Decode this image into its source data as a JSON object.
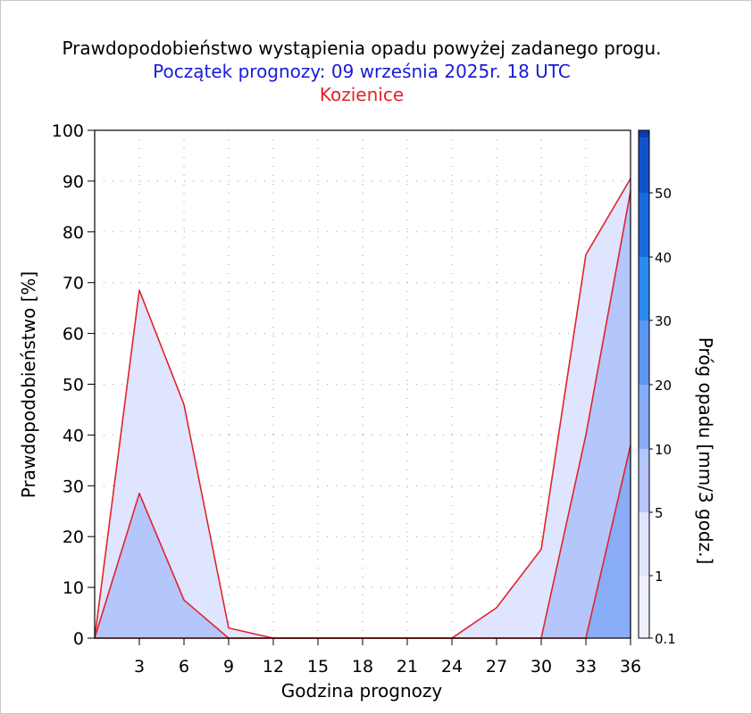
{
  "chart_data": {
    "type": "area",
    "title": "Prawdopodobieństwo wystąpienia opadu powyżej zadanego progu.",
    "subtitle": "Początek prognozy: 09 września 2025r. 18 UTC",
    "location": "Kozienice",
    "xlabel": "Godzina prognozy",
    "ylabel": "Prawdopodobieństwo [%]",
    "colorbar_label": "Próg opadu [mm/3 godz.]",
    "xlim": [
      0,
      36
    ],
    "ylim": [
      0,
      100
    ],
    "x_ticks": [
      3,
      6,
      9,
      12,
      15,
      18,
      21,
      24,
      27,
      30,
      33,
      36
    ],
    "y_ticks": [
      0,
      10,
      20,
      30,
      40,
      50,
      60,
      70,
      80,
      90,
      100
    ],
    "grid": true,
    "x": [
      0,
      3,
      6,
      9,
      12,
      15,
      18,
      21,
      24,
      27,
      30,
      33,
      36
    ],
    "series": [
      {
        "name": "0.1",
        "color": "#dfe5fe",
        "values": [
          0,
          68.5,
          46,
          2,
          0,
          0,
          0,
          0,
          0,
          6,
          17.5,
          75.5,
          90.5
        ]
      },
      {
        "name": "1",
        "color": "#b4c6fa",
        "values": [
          0,
          28.5,
          7.5,
          0,
          0,
          0,
          0,
          0,
          0,
          0,
          0,
          40,
          88
        ]
      },
      {
        "name": "5",
        "color": "#88acf6",
        "values": [
          0,
          0,
          0,
          0,
          0,
          0,
          0,
          0,
          0,
          0,
          0,
          0,
          38
        ]
      }
    ],
    "colorbar": {
      "labels": [
        "0.1",
        "1",
        "5",
        "10",
        "20",
        "30",
        "40",
        "50"
      ],
      "colors": [
        "#eff1fe",
        "#dfe5fe",
        "#b4c6fa",
        "#88acf6",
        "#5c96f0",
        "#2a8af0",
        "#1a6ae0",
        "#1452cc",
        "#0c3aa8"
      ]
    },
    "line_color": "#e0242a"
  }
}
